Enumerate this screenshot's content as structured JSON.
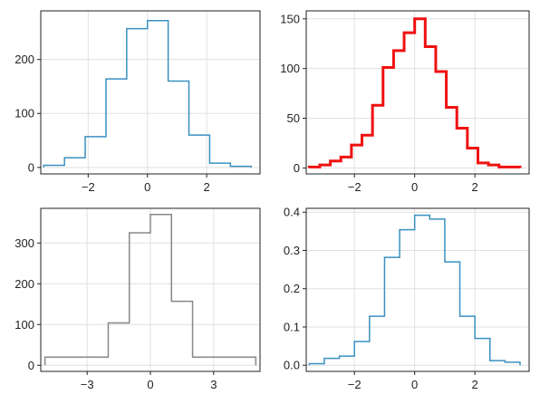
{
  "chart_data": [
    {
      "type": "histogram",
      "color": "#3a90c0",
      "line_width": 1.5,
      "grid": true,
      "xlim": [
        -3.6,
        3.8
      ],
      "ylim": [
        -12,
        290
      ],
      "xticks": [
        -2,
        0,
        2
      ],
      "xtick_labels": [
        "−2",
        "0",
        "2"
      ],
      "yticks": [
        0,
        100,
        200
      ],
      "ytick_labels": [
        "0",
        "100",
        "200"
      ],
      "bin_edges": [
        -3.5,
        -2.8,
        -2.1,
        -1.4,
        -0.7,
        0.0,
        0.7,
        1.4,
        2.1,
        2.8,
        3.5
      ],
      "values": [
        4,
        18,
        57,
        164,
        257,
        272,
        160,
        60,
        8,
        2
      ]
    },
    {
      "type": "histogram",
      "color": "#ee1111",
      "line_width": 3,
      "grid": true,
      "xlim": [
        -3.6,
        3.8
      ],
      "ylim": [
        -6,
        158
      ],
      "xticks": [
        -2,
        0,
        2
      ],
      "xtick_labels": [
        "−2",
        "0",
        "2"
      ],
      "yticks": [
        0,
        50,
        100,
        150
      ],
      "ytick_labels": [
        "0",
        "50",
        "100",
        "150"
      ],
      "bin_edges": [
        -3.5,
        -3.15,
        -2.8,
        -2.45,
        -2.1,
        -1.75,
        -1.4,
        -1.05,
        -0.7,
        -0.35,
        0.0,
        0.35,
        0.7,
        1.05,
        1.4,
        1.75,
        2.1,
        2.45,
        2.8,
        3.15,
        3.5
      ],
      "values": [
        1,
        3,
        7,
        11,
        23,
        33,
        63,
        101,
        118,
        136,
        150,
        122,
        97,
        61,
        40,
        20,
        5,
        3,
        1,
        1
      ]
    },
    {
      "type": "histogram",
      "color": "#888888",
      "line_width": 1.5,
      "grid": true,
      "xlim": [
        -5.2,
        5.2
      ],
      "ylim": [
        -15,
        385
      ],
      "xticks": [
        -3,
        0,
        3
      ],
      "xtick_labels": [
        "−3",
        "0",
        "3"
      ],
      "yticks": [
        0,
        100,
        200,
        300
      ],
      "ytick_labels": [
        "0",
        "100",
        "200",
        "300"
      ],
      "bin_edges": [
        -5.0,
        -2.0,
        -1.0,
        0.0,
        1.0,
        2.0,
        5.0
      ],
      "values": [
        20,
        104,
        325,
        370,
        157,
        20
      ]
    },
    {
      "type": "histogram",
      "color": "#3a90c0",
      "line_width": 1.5,
      "grid": true,
      "xlim": [
        -3.6,
        3.8
      ],
      "ylim": [
        -0.016,
        0.41
      ],
      "xticks": [
        -2,
        0,
        2
      ],
      "xtick_labels": [
        "−2",
        "0",
        "2"
      ],
      "yticks": [
        0,
        0.1,
        0.2,
        0.3,
        0.4
      ],
      "ytick_labels": [
        "0.0",
        "0.1",
        "0.2",
        "0.3",
        "0.4"
      ],
      "bin_edges": [
        -3.5,
        -3.0,
        -2.5,
        -2.0,
        -1.5,
        -1.0,
        -0.5,
        0.0,
        0.5,
        1.0,
        1.5,
        2.0,
        2.5,
        3.0,
        3.5
      ],
      "values": [
        0.004,
        0.018,
        0.024,
        0.062,
        0.128,
        0.282,
        0.354,
        0.392,
        0.382,
        0.27,
        0.128,
        0.07,
        0.012,
        0.008
      ]
    }
  ]
}
